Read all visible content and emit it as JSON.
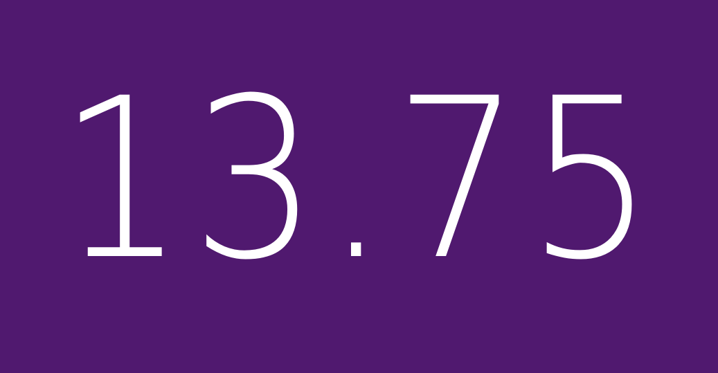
{
  "tile": {
    "background_color": "#50196f",
    "text_color": "#ffffff",
    "value": "13.75"
  }
}
